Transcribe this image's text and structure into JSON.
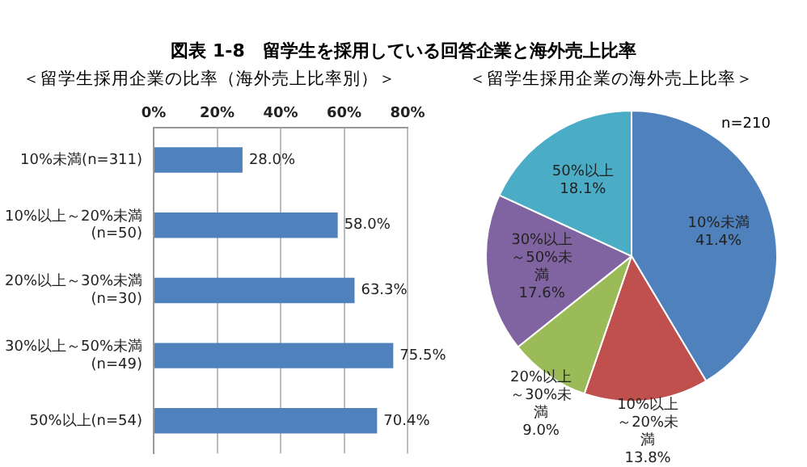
{
  "chart_data": [
    {
      "type": "bar",
      "title": "図表 1-8　留学生を採用している回答企業と海外売上比率",
      "subtitle": "＜留学生採用企業の比率（海外売上比率別）＞",
      "orientation": "horizontal",
      "categories": [
        "10%未満(n=311)",
        "10%以上～20%未満\n(n=50)",
        "20%以上～30%未満\n(n=30)",
        "30%以上～50%未満\n(n=49)",
        "50%以上(n=54)"
      ],
      "values": [
        28.0,
        58.0,
        63.3,
        75.5,
        70.4
      ],
      "value_labels": [
        "28.0%",
        "58.0%",
        "63.3%",
        "75.5%",
        "70.4%"
      ],
      "color": "#4f81bd",
      "xlim": [
        0,
        80
      ],
      "xticks": [
        {
          "value": 0,
          "label": "0%"
        },
        {
          "value": 20,
          "label": "20%"
        },
        {
          "value": 40,
          "label": "40%"
        },
        {
          "value": 60,
          "label": "60%"
        },
        {
          "value": 80,
          "label": "80%"
        }
      ],
      "grid": "x",
      "legend": false
    },
    {
      "type": "pie",
      "title": "＜留学生採用企業の海外売上比率＞",
      "categories": [
        "10%未満",
        "10%以上～20%未満",
        "20%以上～30%未満",
        "30%以上～50%未満",
        "50%以上"
      ],
      "values": [
        41.4,
        13.8,
        9.0,
        17.6,
        18.1
      ],
      "value_labels": [
        "41.4%",
        "13.8%",
        "9.0%",
        "17.6%",
        "18.1%"
      ],
      "colors": [
        "#4f81bd",
        "#c0504d",
        "#9bbb59",
        "#8064a2",
        "#4bacc6"
      ],
      "annotations": [
        "n=210"
      ],
      "legend": false
    }
  ]
}
